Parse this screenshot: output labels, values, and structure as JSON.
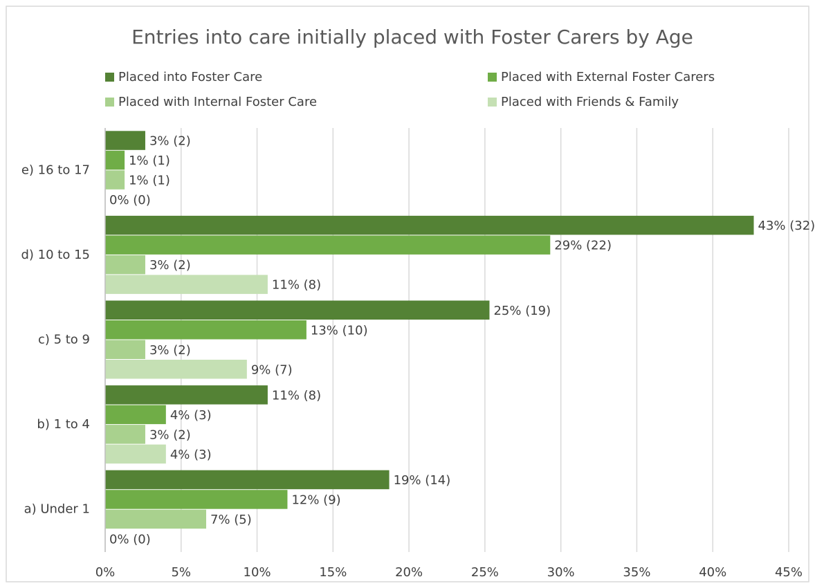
{
  "chart_data": {
    "type": "hbar",
    "title": "Entries into care initially placed with Foster Carers by Age",
    "categories": [
      "a) Under 1",
      "b) 1 to 4",
      "c) 5 to 9",
      "d) 10 to 15",
      "e) 16 to 17"
    ],
    "series": [
      {
        "name": "Placed into Foster Care",
        "color": "#548235",
        "values": [
          18.7,
          10.7,
          25.3,
          42.7,
          2.64
        ],
        "value_labels": [
          "19% (14)",
          "11% (8)",
          "25% (19)",
          "43% (32)",
          "3% (2)"
        ]
      },
      {
        "name": "Placed with External Foster Carers",
        "color": "#70ad47",
        "values": [
          12.0,
          4.0,
          13.25,
          29.3,
          1.28
        ],
        "value_labels": [
          "12% (9)",
          "4% (3)",
          "13% (10)",
          "29% (22)",
          "1% (1)"
        ]
      },
      {
        "name": "Placed with Internal Foster Care",
        "color": "#a9d18e",
        "values": [
          6.65,
          2.64,
          2.64,
          2.64,
          1.28
        ],
        "value_labels": [
          "7% (5)",
          "3% (2)",
          "3% (2)",
          "3% (2)",
          "1% (1)"
        ]
      },
      {
        "name": "Placed with Friends & Family",
        "color": "#c5e0b4",
        "values": [
          0,
          4.0,
          9.33,
          10.7,
          0
        ],
        "value_labels": [
          "0% (0)",
          "4% (3)",
          "9% (7)",
          "11% (8)",
          "0% (0)"
        ]
      }
    ],
    "xlim": [
      0,
      45
    ],
    "xticks": [
      {
        "value": 0,
        "label": "0%"
      },
      {
        "value": 5,
        "label": "5%"
      },
      {
        "value": 10,
        "label": "10%"
      },
      {
        "value": 15,
        "label": "15%"
      },
      {
        "value": 20,
        "label": "20%"
      },
      {
        "value": 25,
        "label": "25%"
      },
      {
        "value": 30,
        "label": "30%"
      },
      {
        "value": 35,
        "label": "35%"
      },
      {
        "value": 40,
        "label": "40%"
      },
      {
        "value": 45,
        "label": "45%"
      }
    ],
    "grid": true,
    "legend": "top"
  }
}
